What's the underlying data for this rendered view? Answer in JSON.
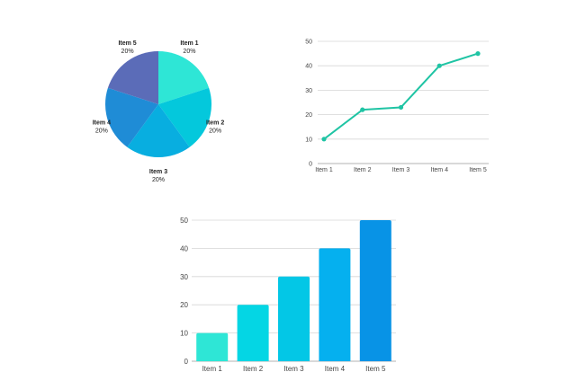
{
  "chart_data": [
    {
      "type": "pie",
      "categories": [
        "Item 1",
        "Item 2",
        "Item 3",
        "Item 4",
        "Item 5"
      ],
      "values": [
        20,
        20,
        20,
        20,
        20
      ],
      "labels": [
        "20%",
        "20%",
        "20%",
        "20%",
        "20%"
      ],
      "colors": [
        "#2ee6d6",
        "#04c8dc",
        "#08aee0",
        "#1f8cd6",
        "#5b6cb8"
      ]
    },
    {
      "type": "line",
      "categories": [
        "Item 1",
        "Item 2",
        "Item 3",
        "Item 4",
        "Item 5"
      ],
      "values": [
        10,
        22,
        23,
        40,
        45
      ],
      "ylim": [
        0,
        50
      ],
      "yticks": [
        0,
        10,
        20,
        30,
        40,
        50
      ],
      "grid": true,
      "color": "#1fc4a4"
    },
    {
      "type": "bar",
      "categories": [
        "Item 1",
        "Item 2",
        "Item 3",
        "Item 4",
        "Item 5"
      ],
      "values": [
        10,
        20,
        30,
        40,
        50
      ],
      "ylim": [
        0,
        50
      ],
      "yticks": [
        0,
        10,
        20,
        30,
        40,
        50
      ],
      "grid": true,
      "colors": [
        "#2ee6d6",
        "#04d6e4",
        "#03c7e6",
        "#05b0ef",
        "#0893e6"
      ]
    }
  ]
}
